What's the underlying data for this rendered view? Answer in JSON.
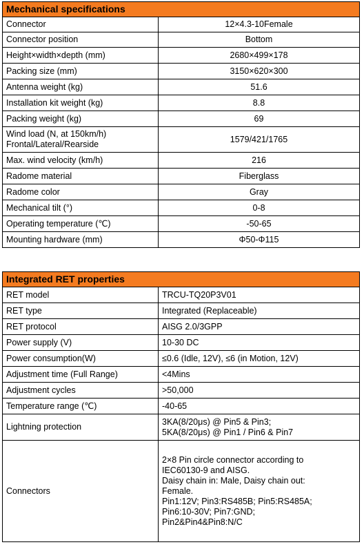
{
  "mechanical": {
    "title": "Mechanical specifications",
    "rows": [
      {
        "label": "Connector",
        "value": "12×4.3-10Female"
      },
      {
        "label": "Connector position",
        "value": "Bottom"
      },
      {
        "label": "Height×width×depth (mm)",
        "value": "2680×499×178"
      },
      {
        "label": "Packing size (mm)",
        "value": "3150×620×300"
      },
      {
        "label": "Antenna weight (kg)",
        "value": "51.6"
      },
      {
        "label": "Installation kit weight (kg)",
        "value": "8.8"
      },
      {
        "label": "Packing weight (kg)",
        "value": "69"
      },
      {
        "label": "Wind load (N, at 150km/h)\nFrontal/Lateral/Rearside",
        "value": "1579/421/1765"
      },
      {
        "label": "Max. wind velocity (km/h)",
        "value": "216"
      },
      {
        "label": "Radome material",
        "value": "Fiberglass"
      },
      {
        "label": "Radome color",
        "value": "Gray"
      },
      {
        "label": "Mechanical tilt (°)",
        "value": "0-8"
      },
      {
        "label": "Operating temperature (℃)",
        "value": "-50-65"
      },
      {
        "label": "Mounting hardware (mm)",
        "value": "Φ50-Φ115"
      }
    ]
  },
  "ret": {
    "title": "Integrated RET properties",
    "rows": [
      {
        "label": "RET model",
        "value": "TRCU-TQ20P3V01"
      },
      {
        "label": "RET type",
        "value": "Integrated (Replaceable)"
      },
      {
        "label": "RET protocol",
        "value": "AISG 2.0/3GPP"
      },
      {
        "label": "Power supply (V)",
        "value": "10-30 DC"
      },
      {
        "label": "Power consumption(W)",
        "value": "≤0.6 (Idle, 12V), ≤6 (in Motion, 12V)"
      },
      {
        "label": "Adjustment time (Full Range)",
        "value": "<4Mins"
      },
      {
        "label": "Adjustment cycles",
        "value": ">50,000"
      },
      {
        "label": "Temperature range (℃)",
        "value": "-40-65"
      },
      {
        "label": "Lightning protection",
        "value": "3KA(8/20μs) @ Pin5 & Pin3;\n5KA(8/20μs) @ Pin1 / Pin6 & Pin7"
      },
      {
        "label": "Connectors",
        "value": "2×8 Pin circle connector according to\nIEC60130-9 and AISG.\nDaisy chain in: Male, Daisy chain out:\nFemale.\nPin1:12V; Pin3:RS485B; Pin5:RS485A;\nPin6:10-30V; Pin7:GND;\nPin2&Pin4&Pin8:N/C"
      }
    ]
  }
}
